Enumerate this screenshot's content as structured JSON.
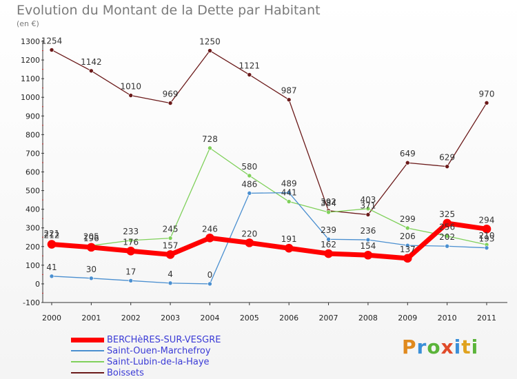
{
  "header": {
    "title": "Evolution du Montant de la Dette par Habitant",
    "subtitle": "(en €)"
  },
  "logo": {
    "text": "Proxiti",
    "letter_colors": [
      "#e08a1e",
      "#3a8fd8",
      "#5bb43a",
      "#e04b2a",
      "#3a8fd8",
      "#e0a21e",
      "#5bb43a"
    ]
  },
  "chart_data": {
    "type": "line",
    "categories": [
      "2000",
      "2001",
      "2002",
      "2003",
      "2004",
      "2005",
      "2006",
      "2007",
      "2008",
      "2009",
      "2010",
      "2011"
    ],
    "ylim": [
      -100,
      1300
    ],
    "yticks": [
      "-100",
      "0",
      "100",
      "200",
      "300",
      "400",
      "500",
      "600",
      "700",
      "800",
      "900",
      "1000",
      "1100",
      "1200",
      "1300"
    ],
    "grid": false,
    "legend_position": "bottom-left",
    "series": [
      {
        "name": "BERCHèRES-SUR-VESGRE",
        "color": "#ff0000",
        "values": [
          212,
          196,
          176,
          157,
          246,
          220,
          191,
          162,
          154,
          137,
          325,
          294
        ],
        "labels": [
          "212",
          "196",
          "176",
          "157",
          "246",
          "220",
          "191",
          "162",
          "154",
          "137",
          "325",
          "294"
        ]
      },
      {
        "name": "Saint-Ouen-Marchefroy",
        "color": "#4a8fd0",
        "values": [
          41,
          30,
          17,
          4,
          0,
          486,
          489,
          239,
          236,
          206,
          202,
          193
        ],
        "labels": [
          "41",
          "30",
          "17",
          "4",
          "0",
          "486",
          "489",
          "239",
          "236",
          "206",
          "202",
          "193"
        ]
      },
      {
        "name": "Saint-Lubin-de-la-Haye",
        "color": "#7fd05a",
        "values": [
          221,
          205,
          233,
          245,
          728,
          580,
          441,
          384,
          403,
          299,
          256,
          210
        ],
        "labels": [
          "221",
          "205",
          "233",
          "245",
          "728",
          "580",
          "441",
          "384",
          "403",
          "299",
          "256",
          "210"
        ]
      },
      {
        "name": "Boissets",
        "color": "#6b1a1a",
        "values": [
          1254,
          1142,
          1010,
          969,
          1250,
          1121,
          987,
          392,
          371,
          649,
          629,
          970
        ],
        "labels": [
          "1254",
          "1142",
          "1010",
          "969",
          "1250",
          "1121",
          "987",
          "392",
          "371",
          "649",
          "629",
          "970"
        ]
      }
    ]
  }
}
